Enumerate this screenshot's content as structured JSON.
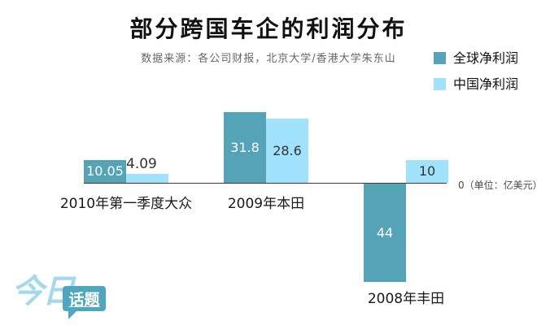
{
  "title": "部分跨国车企的利润分布",
  "subtitle": "数据来源：各公司财报，北京大学/香港大学朱东山",
  "legend": {
    "items": [
      {
        "label": "全球净利润",
        "color": "#55a3b7"
      },
      {
        "label": "中国净利润",
        "color": "#a0e1fb"
      }
    ]
  },
  "axis": {
    "zero_label": "0（单位：亿美元）"
  },
  "logo": {
    "script_text": "今日",
    "bubble_text": "话题"
  },
  "chart_data": {
    "type": "bar",
    "title": "部分跨国车企的利润分布",
    "subtitle": "数据来源：各公司财报，北京大学/香港大学朱东山",
    "categories": [
      "2010年第一季度大众",
      "2009年本田",
      "2008年丰田"
    ],
    "series": [
      {
        "name": "全球净利润",
        "color": "#55a3b7",
        "values": [
          10.05,
          31.8,
          -44
        ]
      },
      {
        "name": "中国净利润",
        "color": "#a0e1fb",
        "values": [
          4.09,
          28.6,
          10
        ]
      }
    ],
    "unit": "亿美元",
    "baseline_label": "0（单位：亿美元）",
    "ylim": [
      -50,
      35
    ],
    "grid": false,
    "legend_position": "top-right"
  }
}
